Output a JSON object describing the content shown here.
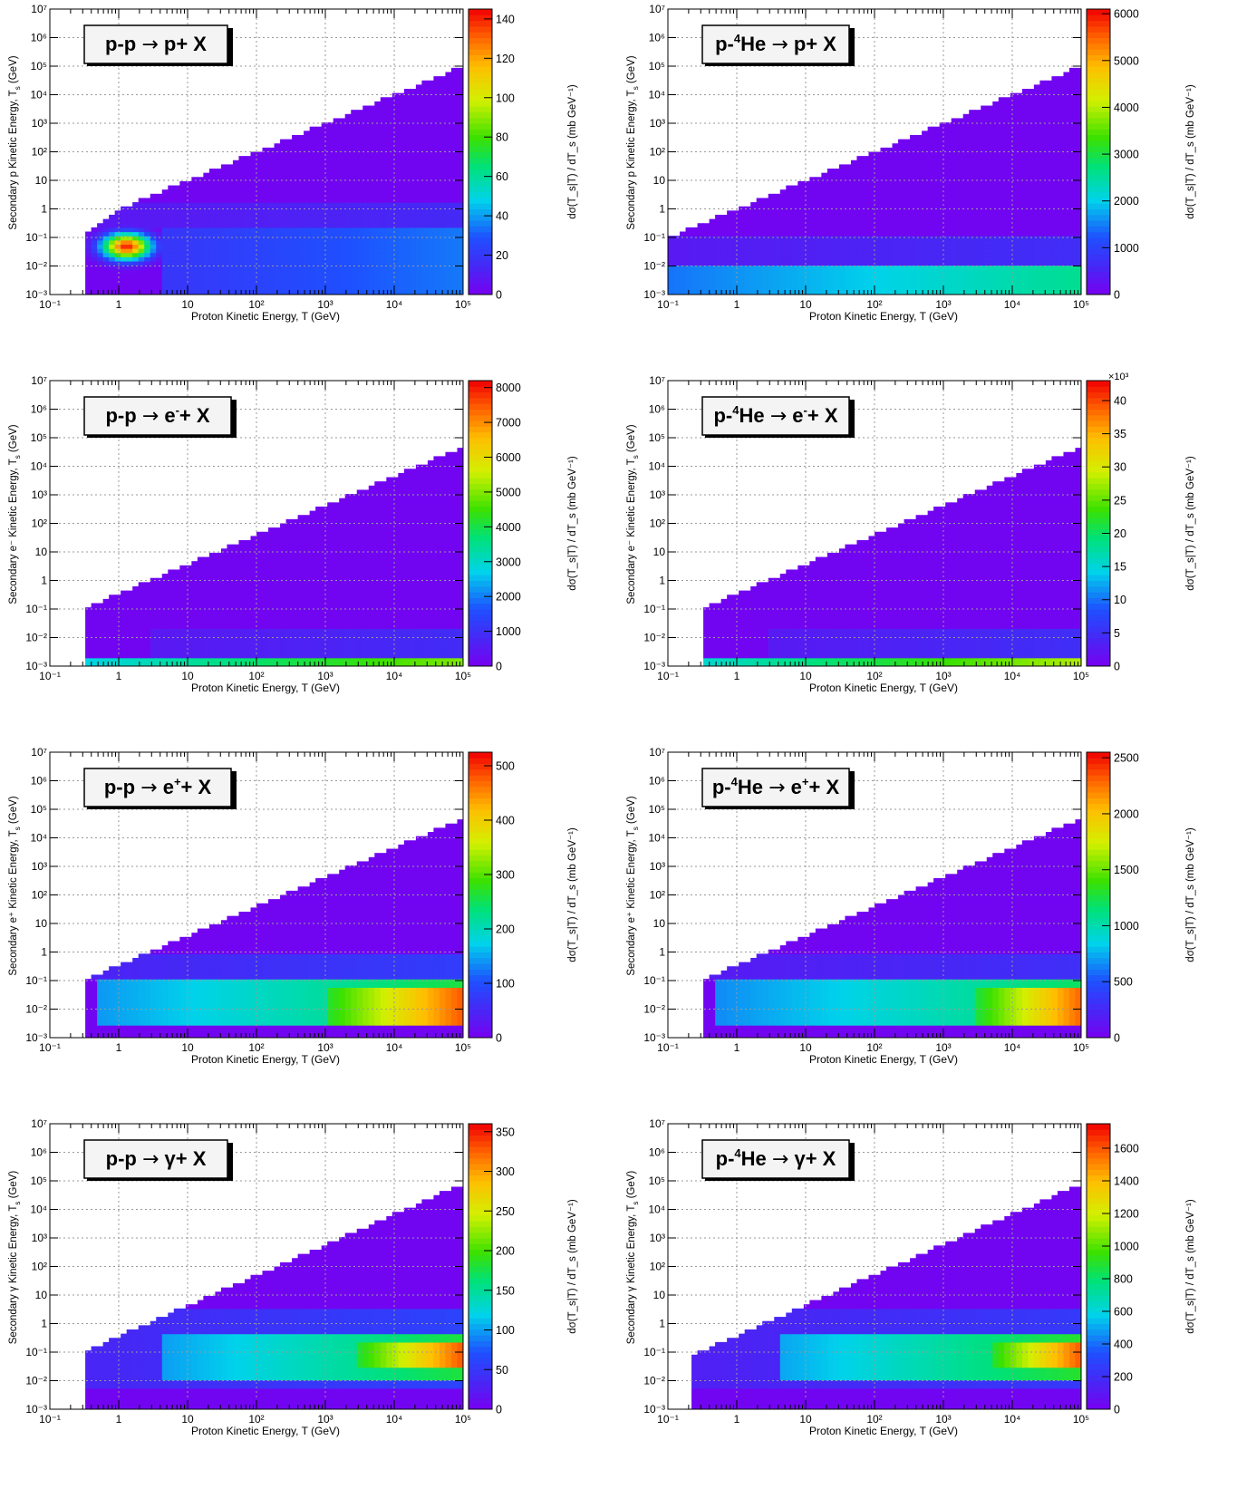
{
  "chart_data": [
    {
      "type": "heatmap",
      "title": "p-p → p+ X",
      "title_parts": [
        "p-p ",
        "→",
        " p+ X"
      ],
      "xlabel": "Proton Kinetic Energy, T (GeV)",
      "ylabel": "Secondary p Kinetic Energy, T_s (GeV)",
      "ylabel_parts": [
        "Secondary p Kinetic Energy, T",
        "s",
        " (GeV)"
      ],
      "zlabel": "dσ(T_s|T) / dT_s  (mb GeV⁻¹)",
      "x_scale": "log",
      "y_scale": "log",
      "xlim": [
        0.1,
        100000
      ],
      "ylim": [
        0.001,
        10000000
      ],
      "x_ticks": [
        "10⁻¹",
        "1",
        "10",
        "10²",
        "10³",
        "10⁴",
        "10⁵"
      ],
      "y_ticks": [
        "10⁻³",
        "10⁻²",
        "10⁻¹",
        "1",
        "10",
        "10²",
        "10³",
        "10⁴",
        "10⁵",
        "10⁶",
        "10⁷"
      ],
      "z_range": [
        0,
        145
      ],
      "z_ticks": [
        "0",
        "20",
        "40",
        "60",
        "80",
        "100",
        "120",
        "140"
      ],
      "z_tick_values": [
        0,
        20,
        40,
        60,
        80,
        100,
        120,
        140
      ],
      "z_multiplier": "",
      "grid": true,
      "legend": "none",
      "kinematic_boundary": {
        "T": [
          0.3,
          1,
          100000
        ],
        "Ts_max": [
          0.1,
          1,
          100000
        ]
      },
      "features": [
        {
          "label": "peak",
          "T": 1.3,
          "Ts": 0.05,
          "value": 140
        },
        {
          "label": "band",
          "T_from": 4,
          "T_to": 100000,
          "Ts_from": 0.001,
          "Ts_to": 0.2,
          "value": 35
        },
        {
          "label": "shell",
          "T_from": 0.4,
          "T_to": 100000,
          "Ts_from": 0.2,
          "Ts_to": 2,
          "value": 15
        }
      ]
    },
    {
      "type": "heatmap",
      "title": "p-⁴He → p+ X",
      "title_parts": [
        "p-",
        "4",
        "He ",
        "→",
        " p+ X"
      ],
      "xlabel": "Proton Kinetic Energy, T (GeV)",
      "ylabel": "Secondary p Kinetic Energy, T_s (GeV)",
      "ylabel_parts": [
        "Secondary p Kinetic Energy, T",
        "s",
        " (GeV)"
      ],
      "zlabel": "dσ(T_s|T) / dT_s  (mb GeV⁻¹)",
      "x_scale": "log",
      "y_scale": "log",
      "xlim": [
        0.1,
        100000
      ],
      "ylim": [
        0.001,
        10000000
      ],
      "x_ticks": [
        "10⁻¹",
        "1",
        "10",
        "10²",
        "10³",
        "10⁴",
        "10⁵"
      ],
      "y_ticks": [
        "10⁻³",
        "10⁻²",
        "10⁻¹",
        "1",
        "10",
        "10²",
        "10³",
        "10⁴",
        "10⁵",
        "10⁶",
        "10⁷"
      ],
      "z_range": [
        0,
        6100
      ],
      "z_ticks": [
        "0",
        "1000",
        "2000",
        "3000",
        "4000",
        "5000",
        "6000"
      ],
      "z_tick_values": [
        0,
        1000,
        2000,
        3000,
        4000,
        5000,
        6000
      ],
      "z_multiplier": "",
      "grid": true,
      "legend": "none",
      "kinematic_boundary": {
        "T": [
          0.1,
          100000
        ],
        "Ts_max": [
          0.1,
          100000
        ]
      },
      "features": [
        {
          "label": "band",
          "T_from": 0.1,
          "T_to": 100000,
          "Ts_from": 0.001,
          "Ts_to": 0.01,
          "value": 2600
        },
        {
          "label": "shell",
          "T_from": 0.1,
          "T_to": 100000,
          "Ts_from": 0.01,
          "Ts_to": 0.1,
          "value": 700
        }
      ]
    },
    {
      "type": "heatmap",
      "title": "p-p → e⁻+ X",
      "title_parts": [
        "p-p ",
        "→",
        " e",
        "-",
        "+ X"
      ],
      "xlabel": "Proton Kinetic Energy, T (GeV)",
      "ylabel": "Secondary e⁻ Kinetic Energy, T_s (GeV)",
      "ylabel_parts": [
        "Secondary e⁻ Kinetic Energy, T",
        "s",
        " (GeV)"
      ],
      "zlabel": "dσ(T_s|T) / dT_s  (mb GeV⁻¹)",
      "x_scale": "log",
      "y_scale": "log",
      "xlim": [
        0.1,
        100000
      ],
      "ylim": [
        0.001,
        10000000
      ],
      "x_ticks": [
        "10⁻¹",
        "1",
        "10",
        "10²",
        "10³",
        "10⁴",
        "10⁵"
      ],
      "y_ticks": [
        "10⁻³",
        "10⁻²",
        "10⁻¹",
        "1",
        "10",
        "10²",
        "10³",
        "10⁴",
        "10⁵",
        "10⁶",
        "10⁷"
      ],
      "z_range": [
        0,
        8200
      ],
      "z_ticks": [
        "0",
        "1000",
        "2000",
        "3000",
        "4000",
        "5000",
        "6000",
        "7000",
        "8000"
      ],
      "z_tick_values": [
        0,
        1000,
        2000,
        3000,
        4000,
        5000,
        6000,
        7000,
        8000
      ],
      "z_multiplier": "",
      "grid": true,
      "legend": "none",
      "kinematic_boundary": {
        "T": [
          0.3,
          100000
        ],
        "Ts_max": [
          0.1,
          50000
        ]
      },
      "features": [
        {
          "label": "floor band",
          "T_from": 0.3,
          "T_to": 100000,
          "Ts_from": 0.001,
          "Ts_to": 0.002,
          "value": 5000
        },
        {
          "label": "shell",
          "T_from": 3,
          "T_to": 100000,
          "Ts_from": 0.002,
          "Ts_to": 0.02,
          "value": 900
        }
      ]
    },
    {
      "type": "heatmap",
      "title": "p-⁴He → e⁻+ X",
      "title_parts": [
        "p-",
        "4",
        "He ",
        "→",
        " e",
        "-",
        "+ X"
      ],
      "xlabel": "Proton Kinetic Energy, T (GeV)",
      "ylabel": "Secondary e⁻ Kinetic Energy, T_s (GeV)",
      "ylabel_parts": [
        "Secondary e⁻ Kinetic Energy, T",
        "s",
        " (GeV)"
      ],
      "zlabel": "dσ(T_s|T) / dT_s  (mb GeV⁻¹)",
      "x_scale": "log",
      "y_scale": "log",
      "xlim": [
        0.1,
        100000
      ],
      "ylim": [
        0.001,
        10000000
      ],
      "x_ticks": [
        "10⁻¹",
        "1",
        "10",
        "10²",
        "10³",
        "10⁴",
        "10⁵"
      ],
      "y_ticks": [
        "10⁻³",
        "10⁻²",
        "10⁻¹",
        "1",
        "10",
        "10²",
        "10³",
        "10⁴",
        "10⁵",
        "10⁶",
        "10⁷"
      ],
      "z_range": [
        0,
        43
      ],
      "z_ticks": [
        "0",
        "5",
        "10",
        "15",
        "20",
        "25",
        "30",
        "35",
        "40"
      ],
      "z_tick_values": [
        0,
        5,
        10,
        15,
        20,
        25,
        30,
        35,
        40
      ],
      "z_multiplier": "×10³",
      "grid": true,
      "legend": "none",
      "kinematic_boundary": {
        "T": [
          0.3,
          100000
        ],
        "Ts_max": [
          0.1,
          50000
        ]
      },
      "features": [
        {
          "label": "floor band",
          "T_from": 0.3,
          "T_to": 100000,
          "Ts_from": 0.001,
          "Ts_to": 0.002,
          "value": 28
        },
        {
          "label": "shell",
          "T_from": 3,
          "T_to": 100000,
          "Ts_from": 0.002,
          "Ts_to": 0.02,
          "value": 5
        }
      ]
    },
    {
      "type": "heatmap",
      "title": "p-p → e⁺+ X",
      "title_parts": [
        "p-p ",
        "→",
        " e",
        "+",
        "+ X"
      ],
      "xlabel": "Proton Kinetic Energy, T (GeV)",
      "ylabel": "Secondary e⁺ Kinetic Energy, T_s (GeV)",
      "ylabel_parts": [
        "Secondary e⁺ Kinetic Energy, T",
        "s",
        " (GeV)"
      ],
      "zlabel": "dσ(T_s|T) / dT_s  (mb GeV⁻¹)",
      "x_scale": "log",
      "y_scale": "log",
      "xlim": [
        0.1,
        100000
      ],
      "ylim": [
        0.001,
        10000000
      ],
      "x_ticks": [
        "10⁻¹",
        "1",
        "10",
        "10²",
        "10³",
        "10⁴",
        "10⁵"
      ],
      "y_ticks": [
        "10⁻³",
        "10⁻²",
        "10⁻¹",
        "1",
        "10",
        "10²",
        "10³",
        "10⁴",
        "10⁵",
        "10⁶",
        "10⁷"
      ],
      "z_range": [
        0,
        525
      ],
      "z_ticks": [
        "0",
        "100",
        "200",
        "300",
        "400",
        "500"
      ],
      "z_tick_values": [
        0,
        100,
        200,
        300,
        400,
        500
      ],
      "z_multiplier": "",
      "grid": true,
      "legend": "none",
      "kinematic_boundary": {
        "T": [
          0.3,
          100000
        ],
        "Ts_max": [
          0.1,
          50000
        ]
      },
      "features": [
        {
          "label": "core",
          "T_from": 1000,
          "T_to": 100000,
          "Ts_from": 0.003,
          "Ts_to": 0.05,
          "value": 480
        },
        {
          "label": "band",
          "T_from": 0.5,
          "T_to": 100000,
          "Ts_from": 0.003,
          "Ts_to": 0.1,
          "value": 260
        },
        {
          "label": "shell",
          "T_from": 0.3,
          "T_to": 100000,
          "Ts_from": 0.1,
          "Ts_to": 1,
          "value": 80
        }
      ]
    },
    {
      "type": "heatmap",
      "title": "p-⁴He → e⁺+ X",
      "title_parts": [
        "p-",
        "4",
        "He ",
        "→",
        " e",
        "+",
        "+ X"
      ],
      "xlabel": "Proton Kinetic Energy, T (GeV)",
      "ylabel": "Secondary e⁺ Kinetic Energy, T_s (GeV)",
      "ylabel_parts": [
        "Secondary e⁺ Kinetic Energy, T",
        "s",
        " (GeV)"
      ],
      "zlabel": "dσ(T_s|T) / dT_s  (mb GeV⁻¹)",
      "x_scale": "log",
      "y_scale": "log",
      "xlim": [
        0.1,
        100000
      ],
      "ylim": [
        0.001,
        10000000
      ],
      "x_ticks": [
        "10⁻¹",
        "1",
        "10",
        "10²",
        "10³",
        "10⁴",
        "10⁵"
      ],
      "y_ticks": [
        "10⁻³",
        "10⁻²",
        "10⁻¹",
        "1",
        "10",
        "10²",
        "10³",
        "10⁴",
        "10⁵",
        "10⁶",
        "10⁷"
      ],
      "z_range": [
        0,
        2550
      ],
      "z_ticks": [
        "0",
        "500",
        "1000",
        "1500",
        "2000",
        "2500"
      ],
      "z_tick_values": [
        0,
        500,
        1000,
        1500,
        2000,
        2500
      ],
      "z_multiplier": "",
      "grid": true,
      "legend": "none",
      "kinematic_boundary": {
        "T": [
          0.3,
          100000
        ],
        "Ts_max": [
          0.1,
          50000
        ]
      },
      "features": [
        {
          "label": "core",
          "T_from": 3000,
          "T_to": 100000,
          "Ts_from": 0.003,
          "Ts_to": 0.05,
          "value": 2300
        },
        {
          "label": "band",
          "T_from": 0.5,
          "T_to": 100000,
          "Ts_from": 0.003,
          "Ts_to": 0.1,
          "value": 1200
        },
        {
          "label": "shell",
          "T_from": 0.3,
          "T_to": 100000,
          "Ts_from": 0.1,
          "Ts_to": 1,
          "value": 300
        }
      ]
    },
    {
      "type": "heatmap",
      "title": "p-p → γ+ X",
      "title_parts": [
        "p-p ",
        "→",
        " γ+ X"
      ],
      "xlabel": "Proton Kinetic Energy, T (GeV)",
      "ylabel": "Secondary γ Kinetic Energy, T_s (GeV)",
      "ylabel_parts": [
        "Secondary γ Kinetic Energy, T",
        "s",
        " (GeV)"
      ],
      "zlabel": "dσ(T_s|T) / dT_s  (mb GeV⁻¹)",
      "x_scale": "log",
      "y_scale": "log",
      "xlim": [
        0.1,
        100000
      ],
      "ylim": [
        0.001,
        10000000
      ],
      "x_ticks": [
        "10⁻¹",
        "1",
        "10",
        "10²",
        "10³",
        "10⁴",
        "10⁵"
      ],
      "y_ticks": [
        "10⁻³",
        "10⁻²",
        "10⁻¹",
        "1",
        "10",
        "10²",
        "10³",
        "10⁴",
        "10⁵",
        "10⁶",
        "10⁷"
      ],
      "z_range": [
        0,
        360
      ],
      "z_ticks": [
        "0",
        "50",
        "100",
        "150",
        "200",
        "250",
        "300",
        "350"
      ],
      "z_tick_values": [
        0,
        50,
        100,
        150,
        200,
        250,
        300,
        350
      ],
      "z_multiplier": "",
      "grid": true,
      "legend": "none",
      "kinematic_boundary": {
        "T": [
          0.3,
          100000
        ],
        "Ts_max": [
          0.1,
          80000
        ]
      },
      "features": [
        {
          "label": "core",
          "T_from": 3000,
          "T_to": 100000,
          "Ts_from": 0.03,
          "Ts_to": 0.2,
          "value": 330
        },
        {
          "label": "band",
          "T_from": 4,
          "T_to": 100000,
          "Ts_from": 0.01,
          "Ts_to": 0.4,
          "value": 180
        },
        {
          "label": "shell",
          "T_from": 0.3,
          "T_to": 100000,
          "Ts_from": 0.005,
          "Ts_to": 3,
          "value": 60
        }
      ]
    },
    {
      "type": "heatmap",
      "title": "p-⁴He → γ+ X",
      "title_parts": [
        "p-",
        "4",
        "He ",
        "→",
        " γ+ X"
      ],
      "xlabel": "Proton Kinetic Energy, T (GeV)",
      "ylabel": "Secondary γ Kinetic Energy, T_s (GeV)",
      "ylabel_parts": [
        "Secondary γ Kinetic Energy, T",
        "s",
        " (GeV)"
      ],
      "zlabel": "dσ(T_s|T) / dT_s  (mb GeV⁻¹)",
      "x_scale": "log",
      "y_scale": "log",
      "xlim": [
        0.1,
        100000
      ],
      "ylim": [
        0.001,
        10000000
      ],
      "x_ticks": [
        "10⁻¹",
        "1",
        "10",
        "10²",
        "10³",
        "10⁴",
        "10⁵"
      ],
      "y_ticks": [
        "10⁻³",
        "10⁻²",
        "10⁻¹",
        "1",
        "10",
        "10²",
        "10³",
        "10⁴",
        "10⁵",
        "10⁶",
        "10⁷"
      ],
      "z_range": [
        0,
        1750
      ],
      "z_ticks": [
        "0",
        "200",
        "400",
        "600",
        "800",
        "1000",
        "1200",
        "1400",
        "1600"
      ],
      "z_tick_values": [
        0,
        200,
        400,
        600,
        800,
        1000,
        1200,
        1400,
        1600
      ],
      "z_multiplier": "",
      "grid": true,
      "legend": "none",
      "kinematic_boundary": {
        "T": [
          0.2,
          100000
        ],
        "Ts_max": [
          0.07,
          80000
        ]
      },
      "features": [
        {
          "label": "core",
          "T_from": 5000,
          "T_to": 100000,
          "Ts_from": 0.03,
          "Ts_to": 0.2,
          "value": 1600
        },
        {
          "label": "band",
          "T_from": 4,
          "T_to": 100000,
          "Ts_from": 0.01,
          "Ts_to": 0.4,
          "value": 900
        },
        {
          "label": "shell",
          "T_from": 0.2,
          "T_to": 100000,
          "Ts_from": 0.005,
          "Ts_to": 3,
          "value": 250
        }
      ]
    }
  ]
}
